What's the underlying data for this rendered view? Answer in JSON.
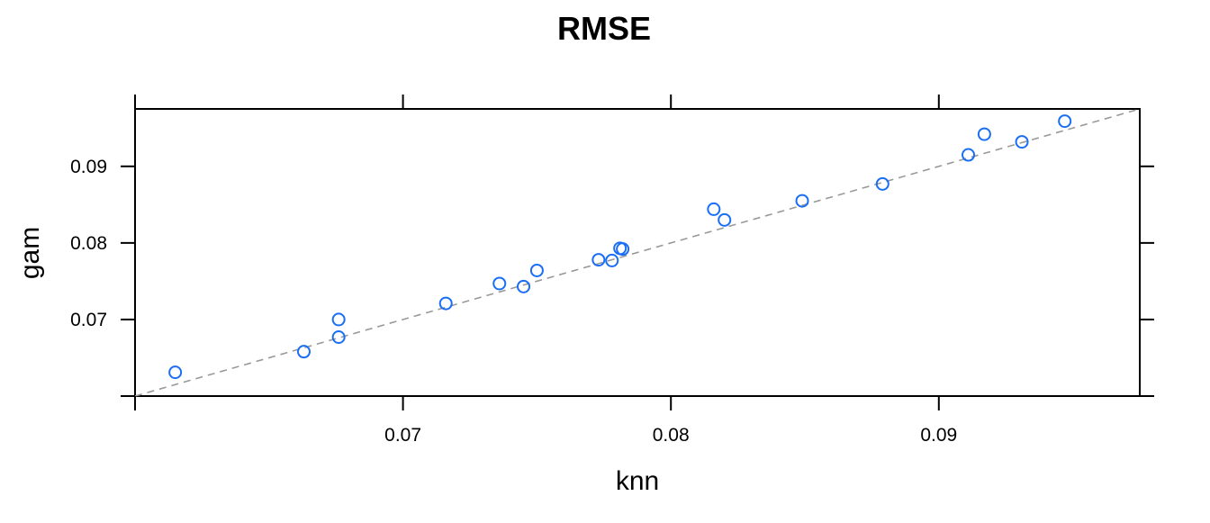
{
  "chart_data": {
    "type": "scatter",
    "title": "RMSE",
    "xlabel": "knn",
    "ylabel": "gam",
    "xlim": [
      0.06,
      0.0975
    ],
    "ylim": [
      0.06,
      0.0975
    ],
    "x_ticks": [
      0.06,
      0.07,
      0.08,
      0.09
    ],
    "x_tick_labels": [
      "",
      "0.07",
      "0.08",
      "0.09"
    ],
    "y_ticks": [
      0.06,
      0.07,
      0.08,
      0.09
    ],
    "y_tick_labels": [
      "",
      "0.07",
      "0.08",
      "0.09"
    ],
    "reference_line": {
      "slope": 1,
      "intercept": 0,
      "style": "dashed",
      "color": "#999999"
    },
    "grid": false,
    "marker_color": "#1a6ef5",
    "points": [
      {
        "x": 0.0615,
        "y": 0.0631
      },
      {
        "x": 0.0663,
        "y": 0.0658
      },
      {
        "x": 0.0676,
        "y": 0.0677
      },
      {
        "x": 0.0676,
        "y": 0.07
      },
      {
        "x": 0.0716,
        "y": 0.0721
      },
      {
        "x": 0.0736,
        "y": 0.0747
      },
      {
        "x": 0.0745,
        "y": 0.0743
      },
      {
        "x": 0.075,
        "y": 0.0764
      },
      {
        "x": 0.0773,
        "y": 0.0778
      },
      {
        "x": 0.0778,
        "y": 0.0777
      },
      {
        "x": 0.0781,
        "y": 0.0793
      },
      {
        "x": 0.0782,
        "y": 0.0792
      },
      {
        "x": 0.0816,
        "y": 0.0844
      },
      {
        "x": 0.082,
        "y": 0.083
      },
      {
        "x": 0.0849,
        "y": 0.0855
      },
      {
        "x": 0.0879,
        "y": 0.0877
      },
      {
        "x": 0.0911,
        "y": 0.0915
      },
      {
        "x": 0.0917,
        "y": 0.0942
      },
      {
        "x": 0.0931,
        "y": 0.0932
      },
      {
        "x": 0.0947,
        "y": 0.0959
      }
    ]
  }
}
